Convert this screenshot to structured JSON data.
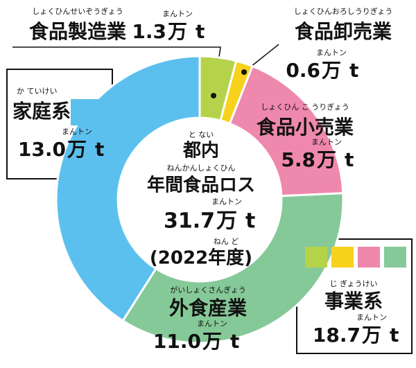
{
  "chart_data": {
    "type": "donut",
    "categories": [
      "食品製造業",
      "食品卸売業",
      "食品小売業",
      "外食産業",
      "家庭系"
    ],
    "categories_ruby": [
      "しょくひんせいぞうぎょう",
      "しょくひんおろしうりぎょう",
      "しょくひん こ うりぎょう",
      "がいしょくさんぎょう",
      "か ていけい"
    ],
    "values": [
      1.3,
      0.6,
      5.8,
      11.0,
      13.0
    ],
    "value_labels": [
      "1.3",
      "0.6",
      "5.8",
      "11.0",
      "13.0"
    ],
    "colors": [
      "#b5d34a",
      "#f7d11c",
      "#ef88ad",
      "#86c998",
      "#5cc0ee"
    ],
    "unit": "万",
    "unit_ruby": "まんトン",
    "unit_t": "t",
    "center": {
      "line1": "都内",
      "line1_ruby": "と ない",
      "line2": "年間食品ロス",
      "line2_ruby": "ねんかんしょくひん",
      "total": 31.7,
      "year": "(2022年度)",
      "year_ruby": "ねん ど"
    },
    "group": {
      "name": "事業系",
      "ruby": "じ ぎょうけい",
      "total": 18.7
    }
  }
}
